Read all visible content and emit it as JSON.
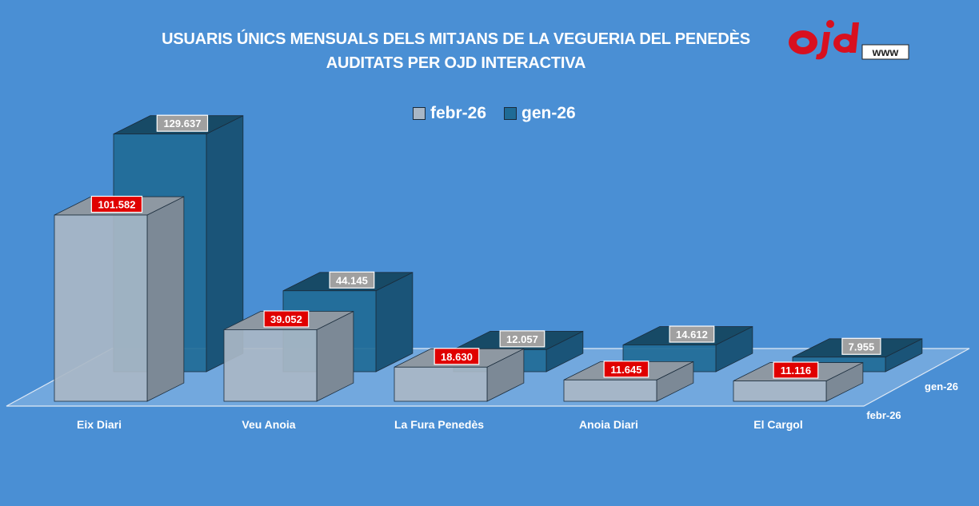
{
  "chart_data": {
    "type": "bar",
    "title_lines": [
      "USUARIS ÚNICS MENSUALS DELS MITJANS DE LA VEGUERIA DEL PENEDÈS",
      "AUDITATS PER OJD INTERACTIVA"
    ],
    "categories": [
      "Eix Diari",
      "Veu Anoia",
      "La Fura Penedès",
      "Anoia Diari",
      "El Cargol"
    ],
    "series": [
      {
        "name": "febr-26",
        "values": [
          101582,
          39052,
          18630,
          11645,
          11116
        ],
        "labels": [
          "101.582",
          "39.052",
          "18.630",
          "11.645",
          "11.116"
        ]
      },
      {
        "name": "gen-26",
        "values": [
          129637,
          44145,
          12057,
          14612,
          7955
        ],
        "labels": [
          "129.637",
          "44.145",
          "12.057",
          "14.612",
          "7.955"
        ]
      }
    ],
    "depth_labels": [
      "gen-26",
      "febr-26"
    ],
    "legend_position": "top-center",
    "grid": false
  },
  "logo": {
    "text": "ojd",
    "sub": "www"
  },
  "colors": {
    "background": "#4a8fd4",
    "febr_front": "#a9b7c6",
    "febr_top": "#8e98a2",
    "febr_side": "#7c8996",
    "gen_front": "#1f6b96",
    "gen_top": "#174a66",
    "gen_side": "#1a5478",
    "label_red": "#e00000",
    "label_gray": "#a0a0a0"
  }
}
